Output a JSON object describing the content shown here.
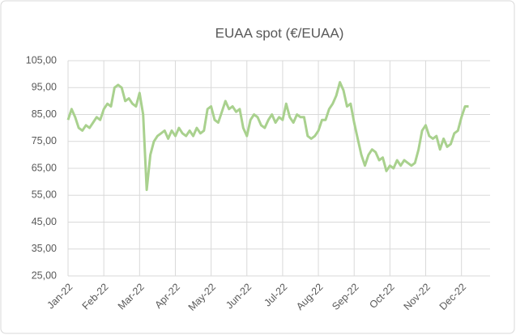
{
  "chart_data": {
    "type": "line",
    "title": "EUAA spot (€/EUAA)",
    "x": [
      0,
      0.1,
      0.2,
      0.3,
      0.4,
      0.5,
      0.6,
      0.7,
      0.8,
      0.9,
      1,
      1.1,
      1.2,
      1.3,
      1.4,
      1.5,
      1.6,
      1.7,
      1.8,
      1.9,
      2,
      2.1,
      2.2,
      2.3,
      2.4,
      2.5,
      2.6,
      2.7,
      2.8,
      2.9,
      3,
      3.1,
      3.2,
      3.3,
      3.4,
      3.5,
      3.6,
      3.7,
      3.8,
      3.9,
      4,
      4.1,
      4.2,
      4.3,
      4.4,
      4.5,
      4.6,
      4.7,
      4.8,
      4.9,
      5,
      5.1,
      5.2,
      5.3,
      5.4,
      5.5,
      5.6,
      5.7,
      5.8,
      5.9,
      6,
      6.1,
      6.2,
      6.3,
      6.4,
      6.5,
      6.6,
      6.7,
      6.8,
      6.9,
      7,
      7.1,
      7.2,
      7.3,
      7.4,
      7.5,
      7.6,
      7.7,
      7.8,
      7.9,
      8,
      8.1,
      8.2,
      8.3,
      8.4,
      8.5,
      8.6,
      8.7,
      8.8,
      8.9,
      9,
      9.1,
      9.2,
      9.3,
      9.4,
      9.5,
      9.6,
      9.7,
      9.8,
      9.9,
      10,
      10.1,
      10.2,
      10.3,
      10.4,
      10.5,
      10.6,
      10.7,
      10.8,
      10.9,
      11,
      11.1,
      11.2
    ],
    "series": [
      {
        "name": "EUAA spot",
        "color": "#a9d18e",
        "values": [
          83,
          87,
          84,
          80,
          79,
          81,
          80,
          82,
          84,
          83,
          87,
          89,
          88,
          95,
          96,
          95,
          90,
          91,
          89,
          88,
          93,
          85,
          57,
          70,
          75,
          77,
          78,
          79,
          76,
          79,
          77,
          80,
          78,
          77,
          79,
          77,
          80,
          78,
          79,
          87,
          88,
          83,
          82,
          86,
          90,
          87,
          88,
          86,
          87,
          80,
          77,
          83,
          85,
          84,
          81,
          80,
          83,
          85,
          82,
          84,
          83,
          89,
          84,
          82,
          85,
          84,
          84,
          77,
          76,
          77,
          79,
          83,
          83,
          87,
          89,
          92,
          97,
          94,
          88,
          89,
          82,
          76,
          70,
          66,
          70,
          72,
          71,
          68,
          69,
          64,
          66,
          65,
          68,
          66,
          68,
          67,
          66,
          67,
          72,
          79,
          81,
          77,
          76,
          77,
          72,
          76,
          73,
          74,
          78,
          79,
          84,
          88,
          88
        ]
      }
    ],
    "xlim": [
      0,
      11.8
    ],
    "xticks": [
      {
        "value": 0,
        "label": "Jan-22"
      },
      {
        "value": 1,
        "label": "Feb-22"
      },
      {
        "value": 2,
        "label": "Mar-22"
      },
      {
        "value": 3,
        "label": "Apr-22"
      },
      {
        "value": 4,
        "label": "May-22"
      },
      {
        "value": 5,
        "label": "Jun-22"
      },
      {
        "value": 6,
        "label": "Jul-22"
      },
      {
        "value": 7,
        "label": "Aug-22"
      },
      {
        "value": 8,
        "label": "Sep-22"
      },
      {
        "value": 9,
        "label": "Oct-22"
      },
      {
        "value": 10,
        "label": "Nov-22"
      },
      {
        "value": 11,
        "label": "Dec-22"
      }
    ],
    "ylim": [
      25,
      105
    ],
    "yticks": [
      {
        "value": 25,
        "label": "25,00"
      },
      {
        "value": 35,
        "label": "35,00"
      },
      {
        "value": 45,
        "label": "45,00"
      },
      {
        "value": 55,
        "label": "55,00"
      },
      {
        "value": 65,
        "label": "65,00"
      },
      {
        "value": 75,
        "label": "75,00"
      },
      {
        "value": 85,
        "label": "85,00"
      },
      {
        "value": 95,
        "label": "95,00"
      },
      {
        "value": 105,
        "label": "105,00"
      }
    ],
    "grid": true
  }
}
